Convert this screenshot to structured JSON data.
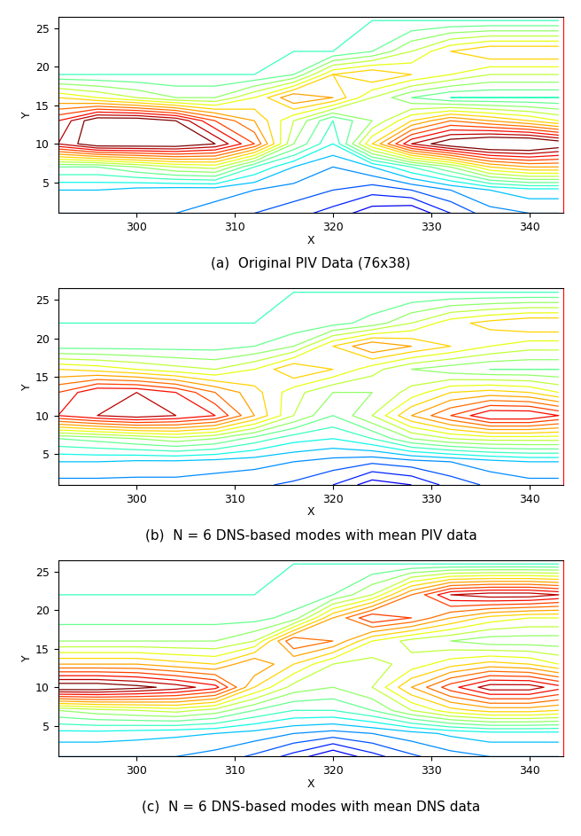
{
  "chart_data": [
    {
      "type": "contour",
      "title": "(a)  Original PIV Data (76x38)",
      "x_label": "X",
      "y_label": "Y",
      "x": [
        292,
        296,
        300,
        304,
        308,
        312,
        316,
        320,
        324,
        328,
        332,
        336,
        340,
        343
      ],
      "y": [
        1,
        4,
        7,
        10,
        13,
        16,
        19,
        22,
        26
      ],
      "z": [
        [
          0.3,
          0.3,
          0.3,
          0.3,
          0.28,
          0.25,
          0.22,
          0.18,
          0.12,
          0.1,
          0.2,
          0.28,
          0.3,
          0.3
        ],
        [
          0.35,
          0.35,
          0.33,
          0.32,
          0.32,
          0.3,
          0.28,
          0.25,
          0.22,
          0.25,
          0.3,
          0.35,
          0.38,
          0.38
        ],
        [
          0.5,
          0.5,
          0.55,
          0.6,
          0.62,
          0.45,
          0.35,
          0.3,
          0.35,
          0.45,
          0.55,
          0.7,
          0.75,
          0.75
        ],
        [
          0.95,
          1.05,
          1.05,
          1.05,
          1.0,
          0.85,
          0.55,
          0.4,
          0.7,
          0.95,
          1.05,
          1.1,
          1.1,
          1.05
        ],
        [
          0.9,
          1.05,
          1.05,
          1.0,
          0.85,
          0.75,
          0.6,
          0.45,
          0.55,
          0.7,
          0.8,
          0.75,
          0.7,
          0.65
        ],
        [
          0.7,
          0.65,
          0.6,
          0.55,
          0.55,
          0.65,
          0.8,
          0.75,
          0.6,
          0.5,
          0.45,
          0.45,
          0.45,
          0.45
        ],
        [
          0.45,
          0.45,
          0.45,
          0.45,
          0.45,
          0.45,
          0.5,
          0.7,
          0.75,
          0.7,
          0.65,
          0.6,
          0.6,
          0.6
        ],
        [
          0.45,
          0.45,
          0.45,
          0.45,
          0.45,
          0.45,
          0.45,
          0.45,
          0.5,
          0.6,
          0.7,
          0.75,
          0.75,
          0.75
        ],
        [
          0.45,
          0.45,
          0.45,
          0.45,
          0.45,
          0.45,
          0.45,
          0.45,
          0.45,
          0.45,
          0.45,
          0.45,
          0.45,
          0.45
        ]
      ],
      "levels": [
        0.05,
        0.1,
        0.15,
        0.2,
        0.25,
        0.3,
        0.35,
        0.4,
        0.45,
        0.5,
        0.55,
        0.6,
        0.65,
        0.7,
        0.75,
        0.8,
        0.85,
        0.9,
        0.95,
        1.0
      ],
      "xlim": [
        292,
        343.5
      ],
      "ylim": [
        1,
        26.5
      ],
      "xticks": [
        300,
        310,
        320,
        330,
        340
      ],
      "yticks": [
        5,
        10,
        15,
        20,
        25
      ]
    },
    {
      "type": "contour",
      "title": "(b)  N = 6 DNS-based modes with mean PIV data",
      "x_label": "X",
      "y_label": "Y",
      "x": [
        292,
        296,
        300,
        304,
        308,
        312,
        316,
        320,
        324,
        328,
        332,
        336,
        340,
        343
      ],
      "y": [
        1,
        4,
        7,
        10,
        13,
        16,
        19,
        22,
        26
      ],
      "z": [
        [
          0.28,
          0.28,
          0.28,
          0.28,
          0.27,
          0.26,
          0.24,
          0.2,
          0.12,
          0.15,
          0.22,
          0.26,
          0.28,
          0.28
        ],
        [
          0.35,
          0.35,
          0.34,
          0.34,
          0.33,
          0.32,
          0.3,
          0.28,
          0.26,
          0.28,
          0.3,
          0.33,
          0.35,
          0.35
        ],
        [
          0.5,
          0.52,
          0.55,
          0.58,
          0.55,
          0.48,
          0.42,
          0.4,
          0.45,
          0.55,
          0.6,
          0.62,
          0.62,
          0.62
        ],
        [
          0.9,
          0.95,
          0.98,
          0.95,
          0.9,
          0.75,
          0.6,
          0.5,
          0.6,
          0.75,
          0.85,
          0.95,
          0.95,
          0.9
        ],
        [
          0.85,
          0.95,
          0.95,
          0.9,
          0.8,
          0.72,
          0.62,
          0.55,
          0.55,
          0.62,
          0.7,
          0.72,
          0.7,
          0.65
        ],
        [
          0.7,
          0.68,
          0.65,
          0.62,
          0.6,
          0.65,
          0.75,
          0.7,
          0.62,
          0.55,
          0.52,
          0.5,
          0.5,
          0.5
        ],
        [
          0.48,
          0.48,
          0.48,
          0.48,
          0.48,
          0.5,
          0.55,
          0.7,
          0.8,
          0.75,
          0.7,
          0.65,
          0.62,
          0.62
        ],
        [
          0.45,
          0.45,
          0.45,
          0.45,
          0.45,
          0.45,
          0.46,
          0.48,
          0.52,
          0.6,
          0.68,
          0.72,
          0.75,
          0.75
        ],
        [
          0.45,
          0.45,
          0.45,
          0.45,
          0.45,
          0.45,
          0.45,
          0.45,
          0.45,
          0.45,
          0.45,
          0.45,
          0.45,
          0.45
        ]
      ],
      "levels": [
        0.05,
        0.1,
        0.15,
        0.2,
        0.25,
        0.3,
        0.35,
        0.4,
        0.45,
        0.5,
        0.55,
        0.6,
        0.65,
        0.7,
        0.75,
        0.8,
        0.85,
        0.9,
        0.95,
        1.0
      ],
      "xlim": [
        292,
        343.5
      ],
      "ylim": [
        1,
        26.5
      ],
      "xticks": [
        300,
        310,
        320,
        330,
        340
      ],
      "yticks": [
        5,
        10,
        15,
        20,
        25
      ]
    },
    {
      "type": "contour",
      "title": "(c)  N = 6 DNS-based modes with mean DNS data",
      "x_label": "X",
      "y_label": "Y",
      "x": [
        292,
        296,
        300,
        304,
        308,
        312,
        316,
        320,
        324,
        328,
        332,
        336,
        340,
        343
      ],
      "y": [
        1,
        4,
        7,
        10,
        13,
        16,
        19,
        22,
        26
      ],
      "z": [
        [
          0.3,
          0.3,
          0.3,
          0.3,
          0.28,
          0.24,
          0.18,
          0.1,
          0.18,
          0.24,
          0.28,
          0.3,
          0.3,
          0.3
        ],
        [
          0.38,
          0.38,
          0.37,
          0.36,
          0.35,
          0.33,
          0.3,
          0.28,
          0.3,
          0.33,
          0.36,
          0.38,
          0.38,
          0.38
        ],
        [
          0.55,
          0.58,
          0.6,
          0.62,
          0.58,
          0.5,
          0.45,
          0.45,
          0.5,
          0.6,
          0.68,
          0.72,
          0.72,
          0.7
        ],
        [
          1.05,
          1.05,
          1.02,
          0.98,
          0.92,
          0.7,
          0.58,
          0.55,
          0.6,
          0.75,
          0.88,
          0.98,
          0.98,
          0.92
        ],
        [
          0.75,
          0.75,
          0.75,
          0.72,
          0.7,
          0.8,
          0.7,
          0.6,
          0.58,
          0.62,
          0.68,
          0.72,
          0.7,
          0.65
        ],
        [
          0.55,
          0.55,
          0.55,
          0.55,
          0.55,
          0.6,
          0.85,
          0.8,
          0.65,
          0.58,
          0.55,
          0.52,
          0.52,
          0.52
        ],
        [
          0.48,
          0.48,
          0.48,
          0.48,
          0.48,
          0.48,
          0.52,
          0.75,
          0.9,
          0.85,
          0.75,
          0.68,
          0.65,
          0.65
        ],
        [
          0.45,
          0.45,
          0.45,
          0.45,
          0.45,
          0.45,
          0.46,
          0.5,
          0.6,
          0.8,
          0.95,
          0.98,
          0.98,
          0.95
        ],
        [
          0.45,
          0.45,
          0.45,
          0.45,
          0.45,
          0.45,
          0.45,
          0.45,
          0.45,
          0.45,
          0.45,
          0.45,
          0.45,
          0.45
        ]
      ],
      "levels": [
        0.05,
        0.1,
        0.15,
        0.2,
        0.25,
        0.3,
        0.35,
        0.4,
        0.45,
        0.5,
        0.55,
        0.6,
        0.65,
        0.7,
        0.75,
        0.8,
        0.85,
        0.9,
        0.95,
        1.0
      ],
      "xlim": [
        292,
        343.5
      ],
      "ylim": [
        1,
        26.5
      ],
      "xticks": [
        300,
        310,
        320,
        330,
        340
      ],
      "yticks": [
        5,
        10,
        15,
        20,
        25
      ]
    }
  ]
}
